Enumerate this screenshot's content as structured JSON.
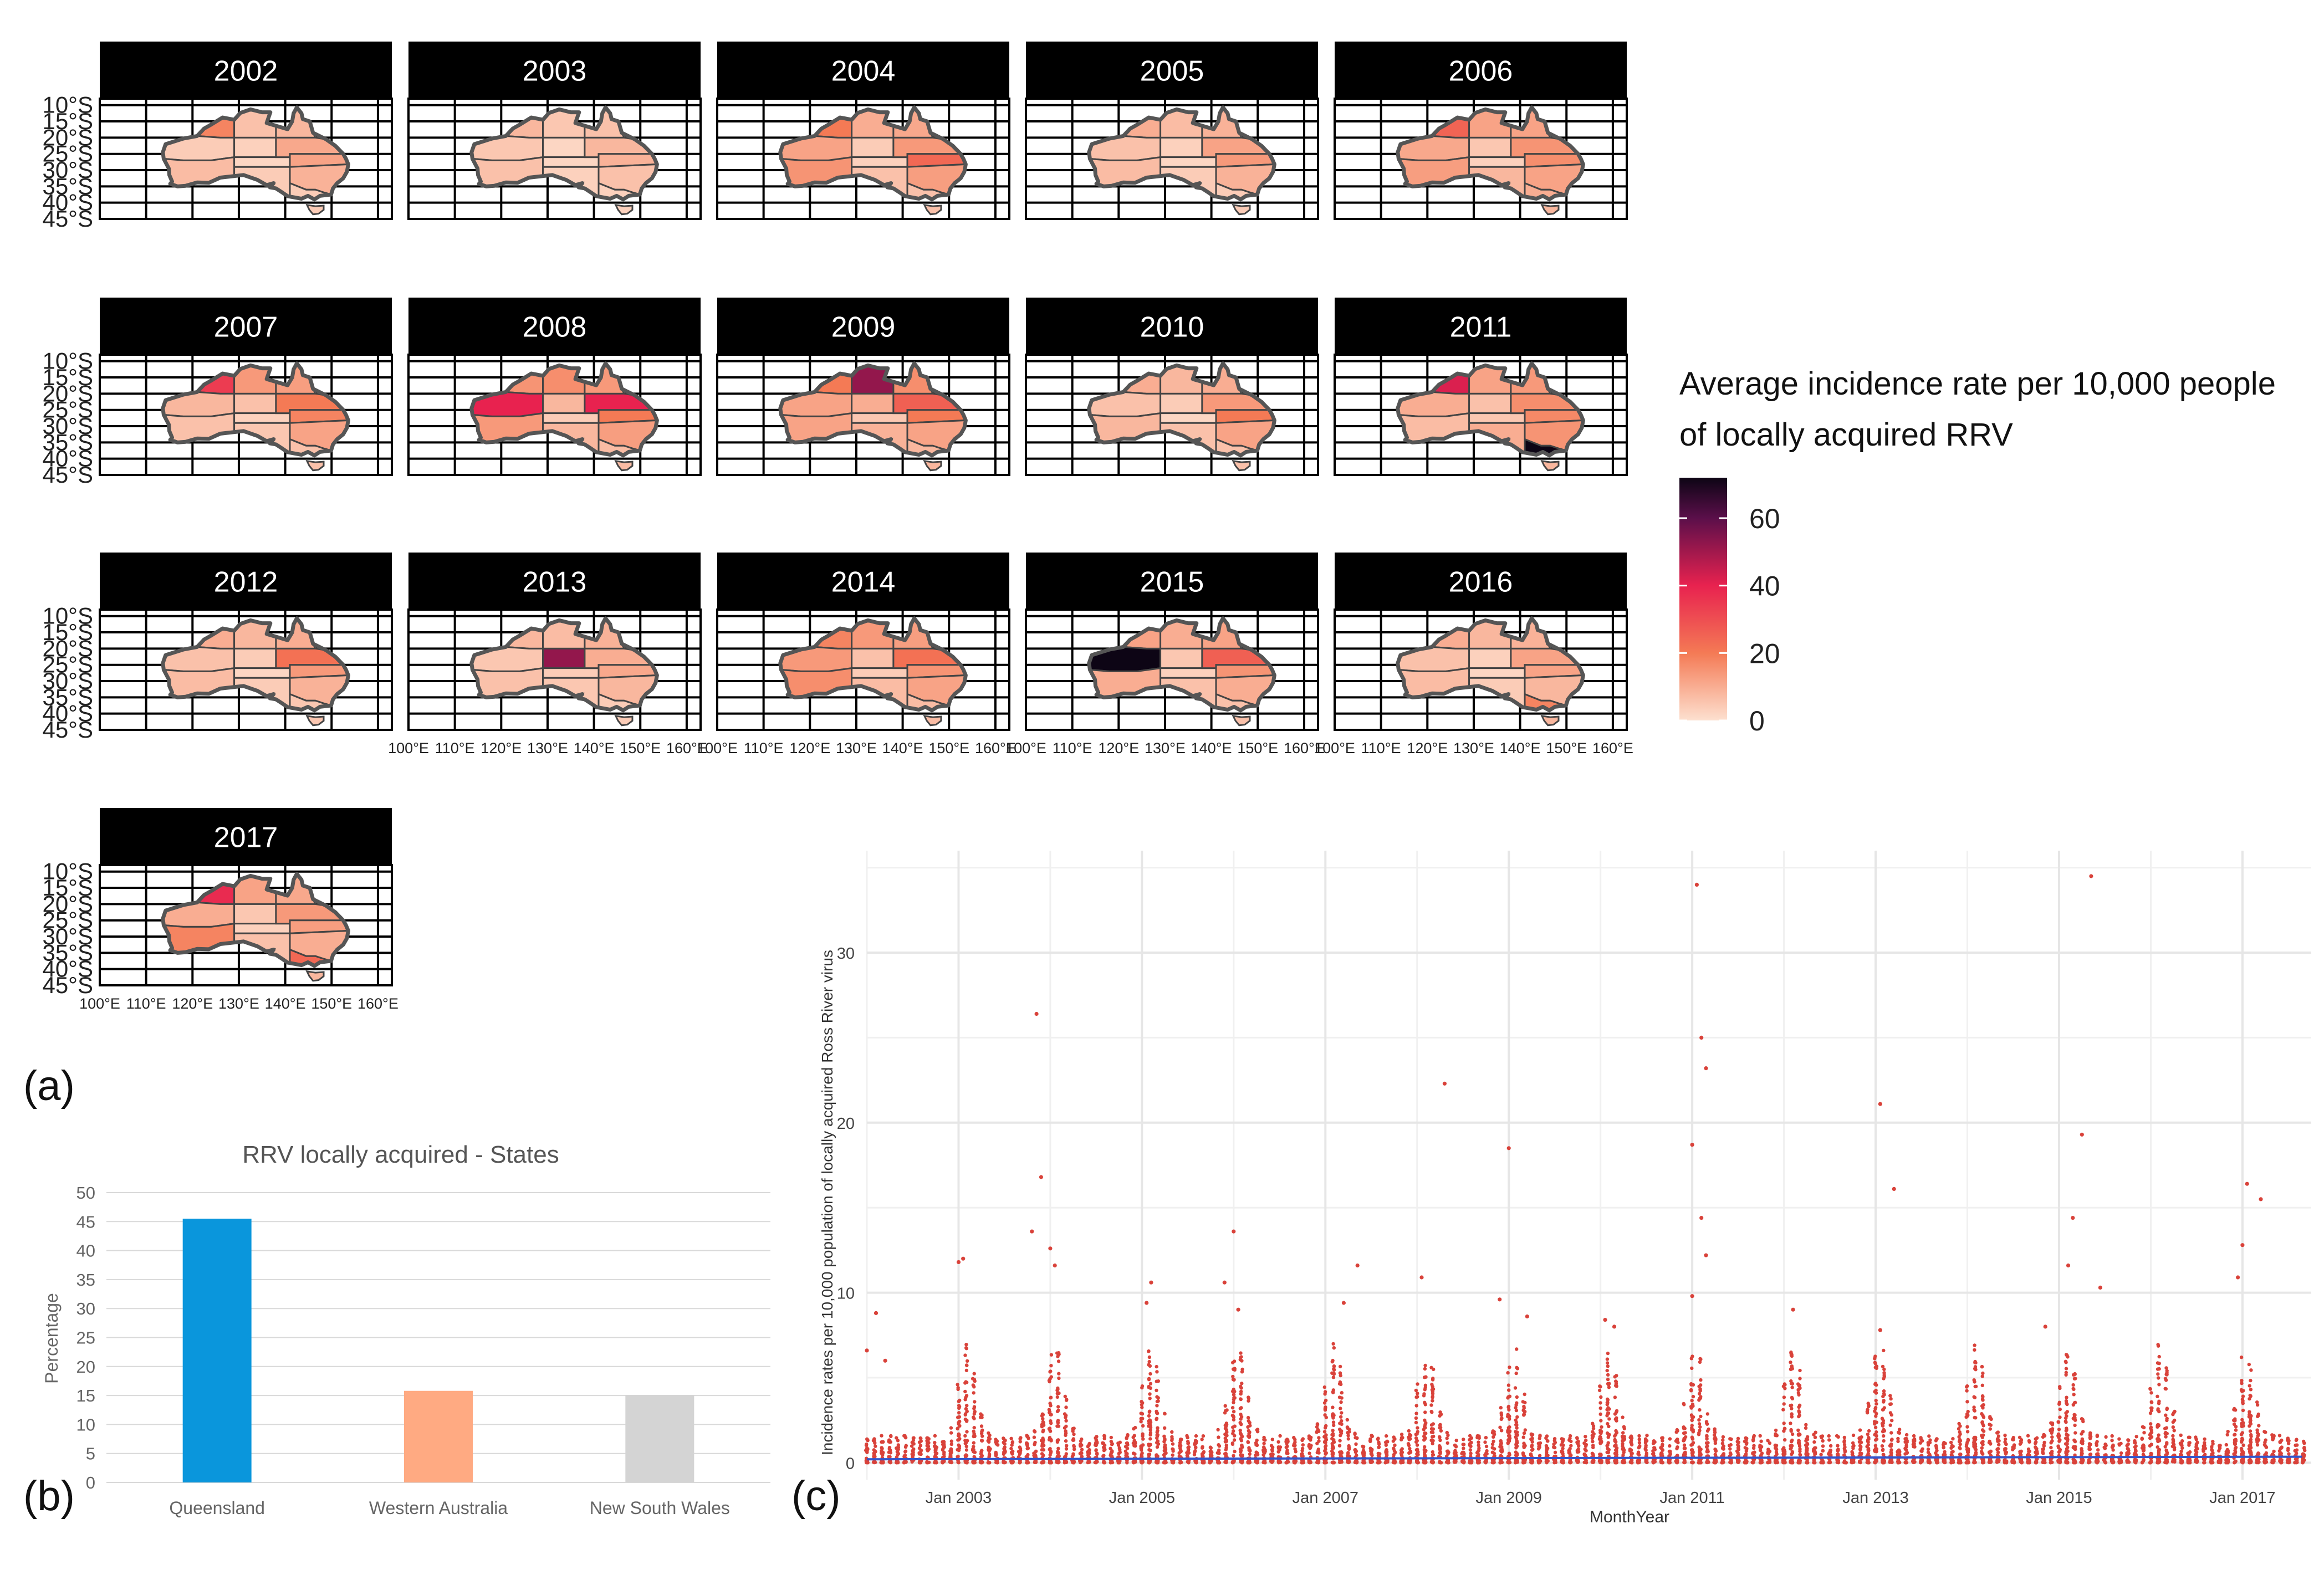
{
  "panel_labels": {
    "a": "(a)",
    "b": "(b)",
    "c": "(c)"
  },
  "colors": {
    "low": "#fde0cf",
    "mid": "#f47a55",
    "high40": "#e8224f",
    "high60": "#5b0f4a",
    "max": "#0d0515",
    "border": "#444444",
    "bar_qld": "#0a96dc",
    "bar_wa": "#ffaa82",
    "bar_nsw": "#d4d4d4",
    "scatter": "#d9423a",
    "trend": "#3355cc"
  },
  "chart_data": [
    {
      "id": "a",
      "type": "heatmap",
      "subtype": "choropleth-small-multiples",
      "facets": [
        "2002",
        "2003",
        "2004",
        "2005",
        "2006",
        "2007",
        "2008",
        "2009",
        "2010",
        "2011",
        "2012",
        "2013",
        "2014",
        "2015",
        "2016",
        "2017"
      ],
      "lat_ticks": [
        "10°S",
        "15°S",
        "20°S",
        "25°S",
        "30°S",
        "35°S",
        "40°S",
        "45°S"
      ],
      "lon_ticks": [
        "100°E",
        "110°E",
        "120°E",
        "130°E",
        "140°E",
        "150°E",
        "160°E"
      ],
      "legend_title_line1": "Average incidence rate per 10,000 people",
      "legend_title_line2": "of locally acquired RRV",
      "legend_ticks": [
        "60",
        "40",
        "20",
        "0"
      ],
      "legend_range": [
        0,
        72
      ],
      "region_intensity": {
        "2002": {
          "kimberley": 18,
          "pilbara": 4,
          "wa_south": 7,
          "nt_top": 6,
          "nt_centre": 3,
          "sa_north": 2,
          "sa_south": 4,
          "qld_north": 8,
          "qld_central": 11,
          "qld_south": 12,
          "nsw": 9,
          "vic": 4
        },
        "2003": {
          "kimberley": 8,
          "pilbara": 5,
          "wa_south": 6,
          "nt_top": 5,
          "nt_centre": 2,
          "sa_north": 2,
          "sa_south": 3,
          "qld_north": 6,
          "qld_central": 8,
          "qld_south": 9,
          "nsw": 6,
          "vic": 3
        },
        "2004": {
          "kimberley": 20,
          "pilbara": 12,
          "wa_south": 15,
          "nt_top": 10,
          "nt_centre": 4,
          "sa_north": 3,
          "sa_south": 6,
          "qld_north": 11,
          "qld_central": 14,
          "qld_south": 24,
          "nsw": 13,
          "vic": 6
        },
        "2005": {
          "kimberley": 10,
          "pilbara": 6,
          "wa_south": 7,
          "nt_top": 7,
          "nt_centre": 3,
          "sa_north": 2,
          "sa_south": 4,
          "qld_north": 9,
          "qld_central": 12,
          "qld_south": 14,
          "nsw": 9,
          "vic": 4
        },
        "2006": {
          "kimberley": 25,
          "pilbara": 11,
          "wa_south": 13,
          "nt_top": 12,
          "nt_centre": 5,
          "sa_north": 3,
          "sa_south": 8,
          "qld_north": 12,
          "qld_central": 15,
          "qld_south": 16,
          "nsw": 12,
          "vic": 10
        },
        "2007": {
          "kimberley": 34,
          "pilbara": 8,
          "wa_south": 6,
          "nt_top": 14,
          "nt_centre": 6,
          "sa_north": 3,
          "sa_south": 5,
          "qld_north": 13,
          "qld_central": 20,
          "qld_south": 18,
          "nsw": 12,
          "vic": 6
        },
        "2008": {
          "kimberley": 15,
          "pilbara": 40,
          "wa_south": 14,
          "nt_top": 16,
          "nt_centre": 8,
          "sa_north": 4,
          "sa_south": 8,
          "qld_north": 14,
          "qld_central": 40,
          "qld_south": 20,
          "nsw": 13,
          "vic": 7
        },
        "2009": {
          "kimberley": 20,
          "pilbara": 12,
          "wa_south": 12,
          "nt_top": 52,
          "nt_centre": 10,
          "sa_north": 5,
          "sa_south": 9,
          "qld_north": 16,
          "qld_central": 26,
          "qld_south": 20,
          "nsw": 12,
          "vic": 8
        },
        "2010": {
          "kimberley": 10,
          "pilbara": 6,
          "wa_south": 8,
          "nt_top": 8,
          "nt_centre": 4,
          "sa_north": 2,
          "sa_south": 6,
          "qld_north": 10,
          "qld_central": 14,
          "qld_south": 20,
          "nsw": 12,
          "vic": 6
        },
        "2011": {
          "kimberley": 42,
          "pilbara": 10,
          "wa_south": 7,
          "nt_top": 12,
          "nt_centre": 6,
          "sa_north": 5,
          "sa_south": 10,
          "qld_north": 14,
          "qld_central": 16,
          "qld_south": 17,
          "nsw": 15,
          "vic": 72
        },
        "2012": {
          "kimberley": 10,
          "pilbara": 6,
          "wa_south": 7,
          "nt_top": 8,
          "nt_centre": 4,
          "sa_north": 2,
          "sa_south": 4,
          "qld_north": 10,
          "qld_central": 22,
          "qld_south": 14,
          "nsw": 9,
          "vic": 5
        },
        "2013": {
          "kimberley": 8,
          "pilbara": 5,
          "wa_south": 6,
          "nt_top": 7,
          "nt_centre": 52,
          "sa_north": 4,
          "sa_south": 5,
          "qld_north": 9,
          "qld_central": 10,
          "qld_south": 11,
          "nsw": 8,
          "vic": 4
        },
        "2014": {
          "kimberley": 18,
          "pilbara": 14,
          "wa_south": 16,
          "nt_top": 14,
          "nt_centre": 6,
          "sa_north": 4,
          "sa_south": 7,
          "qld_north": 13,
          "qld_central": 22,
          "qld_south": 15,
          "nsw": 12,
          "vic": 7
        },
        "2015": {
          "kimberley": 12,
          "pilbara": 72,
          "wa_south": 10,
          "nt_top": 10,
          "nt_centre": 5,
          "sa_north": 3,
          "sa_south": 6,
          "qld_north": 12,
          "qld_central": 26,
          "qld_south": 15,
          "nsw": 10,
          "vic": 6
        },
        "2016": {
          "kimberley": 10,
          "pilbara": 6,
          "wa_south": 7,
          "nt_top": 8,
          "nt_centre": 3,
          "sa_north": 2,
          "sa_south": 4,
          "qld_north": 9,
          "qld_central": 12,
          "qld_south": 12,
          "nsw": 8,
          "vic": 18
        },
        "2017": {
          "kimberley": 38,
          "pilbara": 10,
          "wa_south": 18,
          "nt_top": 12,
          "nt_centre": 5,
          "sa_north": 3,
          "sa_south": 6,
          "qld_north": 11,
          "qld_central": 14,
          "qld_south": 13,
          "nsw": 10,
          "vic": 24
        }
      }
    },
    {
      "id": "b",
      "type": "bar",
      "title": "RRV locally acquired - States",
      "categories": [
        "Queensland",
        "Western Australia",
        "New South Wales"
      ],
      "values": [
        45.5,
        15.8,
        15.1
      ],
      "ylabel": "Percentage",
      "xlabel": "",
      "ylim": [
        0,
        50
      ],
      "yticks": [
        "0",
        "5",
        "10",
        "15",
        "20",
        "25",
        "30",
        "35",
        "40",
        "45",
        "50"
      ]
    },
    {
      "id": "c",
      "type": "scatter",
      "xlabel": "MonthYear",
      "ylabel": "Incidence rates per 10,000 population of locally acquired Ross River virus",
      "xlim": [
        2002.0,
        2017.75
      ],
      "ylim": [
        -1,
        36
      ],
      "xtick_labels": [
        "Jan 2003",
        "Jan 2005",
        "Jan 2007",
        "Jan 2009",
        "Jan 2011",
        "Jan 2013",
        "Jan 2015",
        "Jan 2017"
      ],
      "xtick_values": [
        2003,
        2005,
        2007,
        2009,
        2011,
        2013,
        2015,
        2017
      ],
      "ytick_labels": [
        "0",
        "10",
        "20",
        "30"
      ],
      "ytick_values": [
        0,
        10,
        20,
        30
      ],
      "trend_value": 0.2,
      "outliers": [
        {
          "x": 2002.0,
          "y": 6.6
        },
        {
          "x": 2002.1,
          "y": 8.8
        },
        {
          "x": 2002.2,
          "y": 6.0
        },
        {
          "x": 2003.0,
          "y": 11.8
        },
        {
          "x": 2003.05,
          "y": 12.0
        },
        {
          "x": 2003.85,
          "y": 26.4
        },
        {
          "x": 2003.9,
          "y": 16.8
        },
        {
          "x": 2003.8,
          "y": 13.6
        },
        {
          "x": 2004.0,
          "y": 12.6
        },
        {
          "x": 2004.05,
          "y": 11.6
        },
        {
          "x": 2005.1,
          "y": 10.6
        },
        {
          "x": 2005.05,
          "y": 9.4
        },
        {
          "x": 2006.0,
          "y": 13.6
        },
        {
          "x": 2005.9,
          "y": 10.6
        },
        {
          "x": 2006.05,
          "y": 9.0
        },
        {
          "x": 2007.35,
          "y": 11.6
        },
        {
          "x": 2007.2,
          "y": 9.4
        },
        {
          "x": 2008.05,
          "y": 10.9
        },
        {
          "x": 2008.3,
          "y": 22.3
        },
        {
          "x": 2009.0,
          "y": 18.5
        },
        {
          "x": 2008.9,
          "y": 9.6
        },
        {
          "x": 2009.2,
          "y": 8.6
        },
        {
          "x": 2010.05,
          "y": 8.4
        },
        {
          "x": 2010.15,
          "y": 8.0
        },
        {
          "x": 2011.05,
          "y": 34.0
        },
        {
          "x": 2011.1,
          "y": 25.0
        },
        {
          "x": 2011.15,
          "y": 23.2
        },
        {
          "x": 2011.0,
          "y": 18.7
        },
        {
          "x": 2011.1,
          "y": 14.4
        },
        {
          "x": 2011.15,
          "y": 12.2
        },
        {
          "x": 2011.0,
          "y": 9.8
        },
        {
          "x": 2012.1,
          "y": 9.0
        },
        {
          "x": 2013.05,
          "y": 21.1
        },
        {
          "x": 2013.2,
          "y": 16.1
        },
        {
          "x": 2013.05,
          "y": 7.8
        },
        {
          "x": 2014.85,
          "y": 8.0
        },
        {
          "x": 2015.35,
          "y": 34.5
        },
        {
          "x": 2015.25,
          "y": 19.3
        },
        {
          "x": 2015.15,
          "y": 14.4
        },
        {
          "x": 2015.1,
          "y": 11.6
        },
        {
          "x": 2015.45,
          "y": 10.3
        },
        {
          "x": 2017.05,
          "y": 16.4
        },
        {
          "x": 2017.2,
          "y": 15.5
        },
        {
          "x": 2017.0,
          "y": 12.8
        },
        {
          "x": 2016.95,
          "y": 10.9
        }
      ]
    }
  ]
}
